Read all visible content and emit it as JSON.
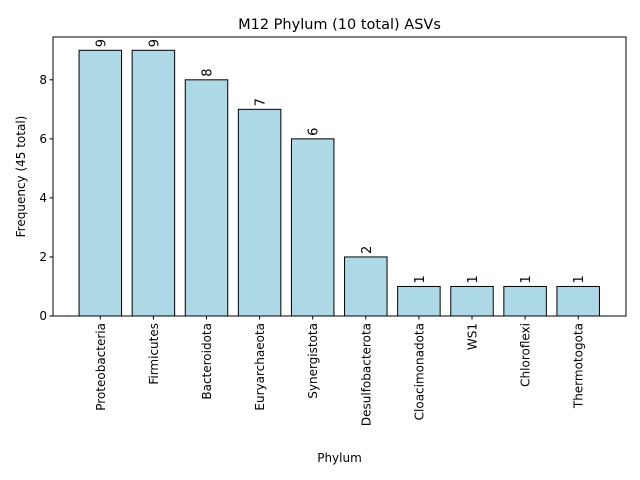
{
  "chart_data": {
    "type": "bar",
    "title": "M12 Phylum (10 total) ASVs",
    "xlabel": "Phylum",
    "ylabel": "Frequency (45 total)",
    "categories": [
      "Proteobacteria",
      "Firmicutes",
      "Bacteroidota",
      "Euryarchaeota",
      "Synergistota",
      "Desulfobacterota",
      "Cloacimonadota",
      "WS1",
      "Chloroflexi",
      "Thermotogota"
    ],
    "values": [
      9,
      9,
      8,
      7,
      6,
      2,
      1,
      1,
      1,
      1
    ],
    "data_labels": [
      "9",
      "9",
      "8",
      "7",
      "6",
      "2",
      "1",
      "1",
      "1",
      "1"
    ],
    "ylim": [
      0,
      9.45
    ],
    "yticks": [
      0,
      2,
      4,
      6,
      8
    ],
    "ytick_labels": [
      "0",
      "2",
      "4",
      "6",
      "8"
    ],
    "bar_color": "#add8e6",
    "edge_color": "#000000",
    "grid": false,
    "legend": "none"
  }
}
